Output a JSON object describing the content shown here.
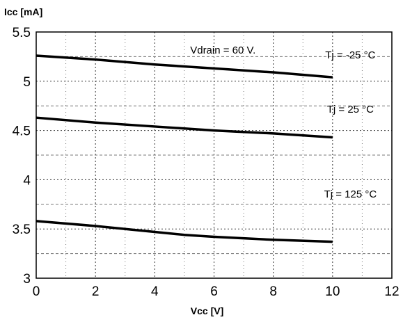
{
  "chart_data": {
    "type": "line",
    "title": "",
    "xlabel": "Vcc [V]",
    "ylabel": "Icc [mA]",
    "xlim": [
      0,
      12
    ],
    "ylim": [
      3,
      5.5
    ],
    "xticks": [
      0,
      2,
      4,
      6,
      8,
      10,
      12
    ],
    "yticks": [
      3,
      3.5,
      4,
      4.5,
      5,
      5.5
    ],
    "xtick_labels": [
      "0",
      "2",
      "4",
      "6",
      "8",
      "10",
      "12"
    ],
    "ytick_labels": [
      "3",
      "3.5",
      "4",
      "4.5",
      "5",
      "5.5"
    ],
    "grid": true,
    "legend": "none",
    "series": [
      {
        "name": "Tj = -25 °C",
        "x": [
          0,
          2,
          4,
          6,
          8,
          10
        ],
        "y": [
          5.26,
          5.22,
          5.17,
          5.13,
          5.09,
          5.04
        ]
      },
      {
        "name": "Tj = 25 °C",
        "x": [
          0,
          2,
          4,
          6,
          8,
          10
        ],
        "y": [
          4.63,
          4.58,
          4.54,
          4.5,
          4.47,
          4.43
        ]
      },
      {
        "name": "Tj = 125 °C",
        "x": [
          0,
          2,
          4,
          5,
          6,
          8,
          10
        ],
        "y": [
          3.58,
          3.53,
          3.47,
          3.44,
          3.42,
          3.39,
          3.37
        ]
      }
    ],
    "annotations": [
      {
        "text": "Vdrain = 60 V.",
        "x": 6.3,
        "y": 5.28
      },
      {
        "text": "Tj = -25 °C",
        "x": 10.6,
        "y": 5.23
      },
      {
        "text": "Tj = 25 °C",
        "x": 10.6,
        "y": 4.68
      },
      {
        "text": "Tj = 125 °C",
        "x": 10.6,
        "y": 3.82
      }
    ]
  }
}
